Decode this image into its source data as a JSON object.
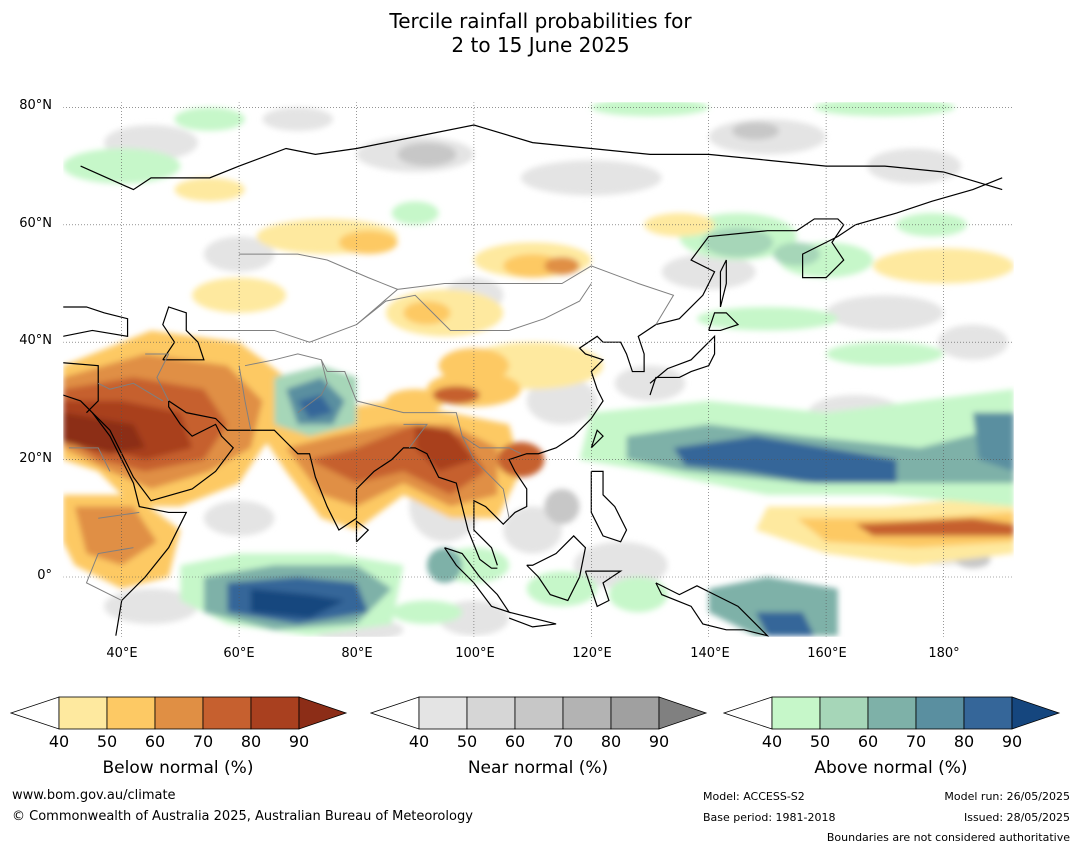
{
  "title_line1": "Tercile rainfall probabilities for",
  "title_line2": "2 to 15 June 2025",
  "map": {
    "lat_labels": [
      "80°N",
      "60°N",
      "40°N",
      "20°N",
      "0°"
    ],
    "lon_labels": [
      "40°E",
      "60°E",
      "80°E",
      "100°E",
      "120°E",
      "140°E",
      "160°E",
      "180°"
    ],
    "colors": {
      "below": [
        "#fee99f",
        "#fdc964",
        "#e08f44",
        "#c6602f",
        "#a9401f",
        "#8c2d17"
      ],
      "near": [
        "#e4e4e4",
        "#d6d6d6",
        "#c7c7c7",
        "#b3b3b3",
        "#a0a0a0",
        "#808080"
      ],
      "above": [
        "#c6f7c9",
        "#a6d6b8",
        "#7eb1a8",
        "#5a8fa0",
        "#356699",
        "#15467e"
      ]
    }
  },
  "colorbars": [
    {
      "caption": "Below normal (%)",
      "ticks": [
        "40",
        "50",
        "60",
        "70",
        "80",
        "90"
      ],
      "colors": [
        "#fee99f",
        "#fdc964",
        "#e08f44",
        "#c6602f",
        "#a9401f",
        "#8c2d17"
      ]
    },
    {
      "caption": "Near normal (%)",
      "ticks": [
        "40",
        "50",
        "60",
        "70",
        "80",
        "90"
      ],
      "colors": [
        "#e4e4e4",
        "#d6d6d6",
        "#c7c7c7",
        "#b3b3b3",
        "#a0a0a0",
        "#808080"
      ]
    },
    {
      "caption": "Above normal (%)",
      "ticks": [
        "40",
        "50",
        "60",
        "70",
        "80",
        "90"
      ],
      "colors": [
        "#c6f7c9",
        "#a6d6b8",
        "#7eb1a8",
        "#5a8fa0",
        "#356699",
        "#15467e"
      ]
    }
  ],
  "footer": {
    "website": "www.bom.gov.au/climate",
    "copyright": "© Commonwealth of Australia 2025, Australian Bureau of Meteorology",
    "model": "Model: ACCESS-S2",
    "base_period": "Base period: 1981-2018",
    "model_run": "Model run: 26/05/2025",
    "issued": "Issued: 28/05/2025",
    "disclaimer": "Boundaries are not considered authoritative"
  }
}
